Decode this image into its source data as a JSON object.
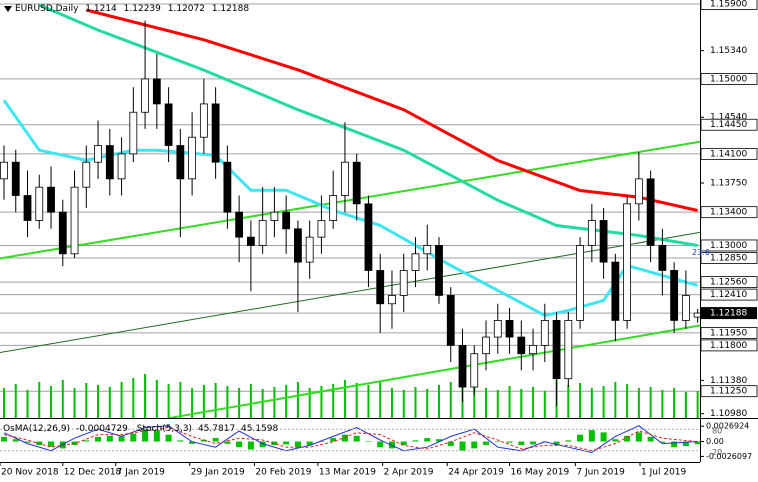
{
  "chart_data": {
    "type": "candlestick",
    "title": "EURUSD,Daily",
    "xlim": [
      -0.34,
      59.2
    ],
    "xticks": [
      {
        "value": -0.34,
        "label": "20 Nov 2018"
      },
      {
        "value": 5.0,
        "label": "12 Dec 2018"
      },
      {
        "value": 9.5,
        "label": "7 Jan 2019"
      },
      {
        "value": 15.8,
        "label": "29 Jan 2019"
      },
      {
        "value": 21.3,
        "label": "20 Feb 2019"
      },
      {
        "value": 26.7,
        "label": "13 Mar 2019"
      },
      {
        "value": 32.2,
        "label": "2 Apr 2019"
      },
      {
        "value": 37.7,
        "label": "24 Apr 2019"
      },
      {
        "value": 43.0,
        "label": "16 May 2019"
      },
      {
        "value": 48.6,
        "label": "7 Jun 2019"
      },
      {
        "value": 54.1,
        "label": "1 Jul 2019"
      }
    ],
    "ylim": [
      1.10928,
      1.15948
    ],
    "yticks": [
      {
        "value": 1.159,
        "label": "1.15900",
        "boxed": true
      },
      {
        "value": 1.1534,
        "label": "1.15340",
        "boxed": false
      },
      {
        "value": 1.15,
        "label": "1.15000",
        "boxed": true
      },
      {
        "value": 1.1454,
        "label": "1.14540",
        "boxed": false
      },
      {
        "value": 1.1445,
        "label": "1.14450",
        "boxed": true
      },
      {
        "value": 1.141,
        "label": "1.14100",
        "boxed": true
      },
      {
        "value": 1.1375,
        "label": "1.13750",
        "boxed": false
      },
      {
        "value": 1.134,
        "label": "1.13400",
        "boxed": true
      },
      {
        "value": 1.13,
        "label": "1.13000",
        "boxed": true
      },
      {
        "value": 1.1285,
        "label": "1.12850",
        "boxed": true
      },
      {
        "value": 1.1256,
        "label": "1.12560",
        "boxed": true
      },
      {
        "value": 1.1241,
        "label": "1.12410",
        "boxed": true
      },
      {
        "value": 1.1195,
        "label": "1.11950",
        "boxed": true
      },
      {
        "value": 1.118,
        "label": "1.11800",
        "boxed": true
      },
      {
        "value": 1.1138,
        "label": "1.11380",
        "boxed": false
      },
      {
        "value": 1.1125,
        "label": "1.11250",
        "boxed": true
      },
      {
        "value": 1.1098,
        "label": "1.10980",
        "boxed": false
      }
    ],
    "ohlc": [
      [
        1.138,
        1.142,
        1.1355,
        1.14
      ],
      [
        1.14,
        1.1415,
        1.134,
        1.136
      ],
      [
        1.136,
        1.139,
        1.131,
        1.133
      ],
      [
        1.133,
        1.1385,
        1.132,
        1.137
      ],
      [
        1.137,
        1.1395,
        1.132,
        1.134
      ],
      [
        1.134,
        1.1355,
        1.1275,
        1.129
      ],
      [
        1.129,
        1.139,
        1.1285,
        1.137
      ],
      [
        1.137,
        1.142,
        1.1345,
        1.14
      ],
      [
        1.14,
        1.145,
        1.138,
        1.142
      ],
      [
        1.142,
        1.144,
        1.136,
        1.138
      ],
      [
        1.138,
        1.143,
        1.136,
        1.141
      ],
      [
        1.141,
        1.149,
        1.14,
        1.146
      ],
      [
        1.146,
        1.157,
        1.144,
        1.15
      ],
      [
        1.15,
        1.153,
        1.144,
        1.147
      ],
      [
        1.147,
        1.149,
        1.14,
        1.142
      ],
      [
        1.142,
        1.144,
        1.131,
        1.138
      ],
      [
        1.138,
        1.146,
        1.136,
        1.143
      ],
      [
        1.143,
        1.15,
        1.141,
        1.147
      ],
      [
        1.147,
        1.149,
        1.138,
        1.14
      ],
      [
        1.14,
        1.142,
        1.132,
        1.134
      ],
      [
        1.134,
        1.136,
        1.128,
        1.131
      ],
      [
        1.131,
        1.133,
        1.1245,
        1.13
      ],
      [
        1.13,
        1.137,
        1.129,
        1.133
      ],
      [
        1.133,
        1.137,
        1.131,
        1.134
      ],
      [
        1.134,
        1.136,
        1.129,
        1.132
      ],
      [
        1.132,
        1.133,
        1.122,
        1.128
      ],
      [
        1.128,
        1.133,
        1.126,
        1.131
      ],
      [
        1.131,
        1.136,
        1.129,
        1.133
      ],
      [
        1.133,
        1.139,
        1.132,
        1.136
      ],
      [
        1.136,
        1.1448,
        1.134,
        1.14
      ],
      [
        1.14,
        1.141,
        1.133,
        1.135
      ],
      [
        1.135,
        1.136,
        1.125,
        1.127
      ],
      [
        1.127,
        1.129,
        1.1195,
        1.123
      ],
      [
        1.123,
        1.127,
        1.12,
        1.124
      ],
      [
        1.124,
        1.129,
        1.122,
        1.127
      ],
      [
        1.127,
        1.131,
        1.125,
        1.129
      ],
      [
        1.129,
        1.1325,
        1.127,
        1.13
      ],
      [
        1.13,
        1.131,
        1.123,
        1.124
      ],
      [
        1.124,
        1.125,
        1.116,
        1.118
      ],
      [
        1.118,
        1.12,
        1.1112,
        1.113
      ],
      [
        1.113,
        1.118,
        1.112,
        1.117
      ],
      [
        1.117,
        1.121,
        1.115,
        1.119
      ],
      [
        1.119,
        1.123,
        1.117,
        1.121
      ],
      [
        1.121,
        1.1225,
        1.117,
        1.119
      ],
      [
        1.119,
        1.121,
        1.115,
        1.117
      ],
      [
        1.117,
        1.12,
        1.115,
        1.118
      ],
      [
        1.118,
        1.123,
        1.116,
        1.121
      ],
      [
        1.121,
        1.122,
        1.1107,
        1.114
      ],
      [
        1.114,
        1.122,
        1.113,
        1.121
      ],
      [
        1.121,
        1.131,
        1.12,
        1.13
      ],
      [
        1.13,
        1.135,
        1.128,
        1.133
      ],
      [
        1.133,
        1.1345,
        1.126,
        1.128
      ],
      [
        1.128,
        1.129,
        1.1185,
        1.121
      ],
      [
        1.121,
        1.136,
        1.12,
        1.135
      ],
      [
        1.135,
        1.1412,
        1.133,
        1.138
      ],
      [
        1.138,
        1.139,
        1.128,
        1.13
      ],
      [
        1.13,
        1.132,
        1.124,
        1.127
      ],
      [
        1.127,
        1.128,
        1.1195,
        1.121
      ],
      [
        1.121,
        1.127,
        1.12,
        1.124
      ],
      [
        1.1214,
        1.12239,
        1.12072,
        1.12188
      ]
    ],
    "up_color": "#ffffff",
    "down_color": "#000000",
    "volume": [
      30,
      34,
      28,
      36,
      32,
      38,
      30,
      35,
      33,
      31,
      36,
      40,
      44,
      38,
      34,
      36,
      30,
      33,
      35,
      32,
      30,
      34,
      29,
      31,
      33,
      36,
      30,
      32,
      34,
      38,
      35,
      33,
      37,
      30,
      28,
      31,
      29,
      33,
      36,
      40,
      34,
      30,
      28,
      32,
      29,
      31,
      27,
      38,
      33,
      35,
      30,
      32,
      36,
      34,
      30,
      31,
      28,
      30,
      26,
      27
    ],
    "volume_color": "#00c000",
    "lines": [
      {
        "color": "#ff0000",
        "x": [
          7,
          17,
          25,
          34,
          42,
          49,
          54,
          59
        ],
        "values": [
          1.15828,
          1.1547,
          1.1511,
          1.1463,
          1.1402,
          1.1366,
          1.1358,
          1.1342
        ]
      },
      {
        "color": "#22dba0",
        "x": [
          3,
          8,
          17,
          25,
          34,
          42,
          47,
          54,
          59
        ],
        "values": [
          1.15888,
          1.15587,
          1.15106,
          1.1463,
          1.14144,
          1.13542,
          1.1324,
          1.1312,
          1.13
        ]
      },
      {
        "color": "#3ee6f2",
        "x": [
          0,
          3,
          7,
          11,
          13,
          18,
          21,
          24,
          28,
          32,
          35,
          38,
          42,
          46,
          48,
          51,
          53,
          56,
          59
        ],
        "values": [
          1.14745,
          1.14144,
          1.14023,
          1.14144,
          1.14144,
          1.14083,
          1.13662,
          1.13662,
          1.13422,
          1.13241,
          1.13001,
          1.1276,
          1.1246,
          1.12159,
          1.12219,
          1.12339,
          1.1276,
          1.1264,
          1.1252
        ]
      }
    ],
    "trendlines": [
      {
        "color": "#33dd22",
        "width": 2,
        "x": [
          -0.34,
          60
        ],
        "values": [
          1.12845,
          1.14264
        ]
      },
      {
        "color": "#33dd22",
        "width": 2,
        "x": [
          14.1,
          59.2
        ],
        "values": [
          1.10928,
          1.12039
        ]
      },
      {
        "color": "#1f6b1f",
        "width": 1,
        "x": [
          -0.34,
          59.2
        ],
        "values": [
          1.11714,
          1.13157
        ]
      }
    ],
    "fib_label": "23.6",
    "oscillator": {
      "osma_name": "OsMA(12,26,9)",
      "osma": [
        0.0008,
        0.0004,
        -0.0002,
        -0.0006,
        -0.0009,
        -0.0012,
        -0.0006,
        0.0002,
        0.0008,
        0.001,
        0.0009,
        0.0014,
        0.0022,
        0.002,
        0.0012,
        0.0002,
        -0.0004,
        0.0003,
        0.0006,
        -0.0004,
        -0.001,
        -0.0014,
        -0.001,
        -0.0006,
        -0.0005,
        -0.001,
        -0.0006,
        0.0,
        0.0006,
        0.0012,
        0.001,
        0.0,
        -0.001,
        -0.0012,
        -0.0006,
        0.0002,
        0.0006,
        0.0004,
        -0.0008,
        -0.0016,
        -0.0012,
        -0.0006,
        0.0,
        -0.0002,
        -0.0006,
        -0.0005,
        0.0,
        -0.0006,
        0.0002,
        0.0012,
        0.002,
        0.0016,
        0.0004,
        0.001,
        0.0016,
        0.0008,
        -0.0002,
        -0.001,
        -0.0008,
        -0.0004729
      ],
      "osma_color": "#00c000",
      "ylim": [
        -0.00359,
        0.00395
      ],
      "yticks": [
        {
          "value": 0.0026924,
          "label": "0.0026924"
        },
        {
          "value": 0,
          "label": "0.00"
        },
        {
          "value": -0.0026097,
          "label": "-0.0026097"
        }
      ],
      "stoch_name": "Stoch(5,3,3)",
      "stoch_x": [
        0,
        2,
        4,
        6,
        8,
        10,
        12,
        14,
        16,
        18,
        20,
        22,
        24,
        26,
        28,
        30,
        32,
        34,
        36,
        38,
        40,
        42,
        44,
        46,
        48,
        50,
        52,
        54,
        56,
        59
      ],
      "stoch_main": [
        70,
        40,
        20,
        55,
        80,
        60,
        85,
        90,
        45,
        30,
        75,
        40,
        20,
        35,
        60,
        85,
        50,
        20,
        30,
        60,
        80,
        30,
        20,
        45,
        30,
        15,
        60,
        90,
        40,
        45.7817
      ],
      "stoch_signal": [
        65,
        50,
        30,
        40,
        65,
        65,
        75,
        85,
        60,
        40,
        55,
        50,
        30,
        30,
        45,
        70,
        65,
        35,
        25,
        45,
        70,
        50,
        25,
        35,
        35,
        20,
        40,
        75,
        55,
        45.1598
      ],
      "stoch_main_color": "#2030d0",
      "stoch_signal_color": "#e02020",
      "stoch_ylim": [
        -11.4,
        108.6
      ],
      "stoch_yticks": [
        20,
        80
      ]
    }
  }
}
